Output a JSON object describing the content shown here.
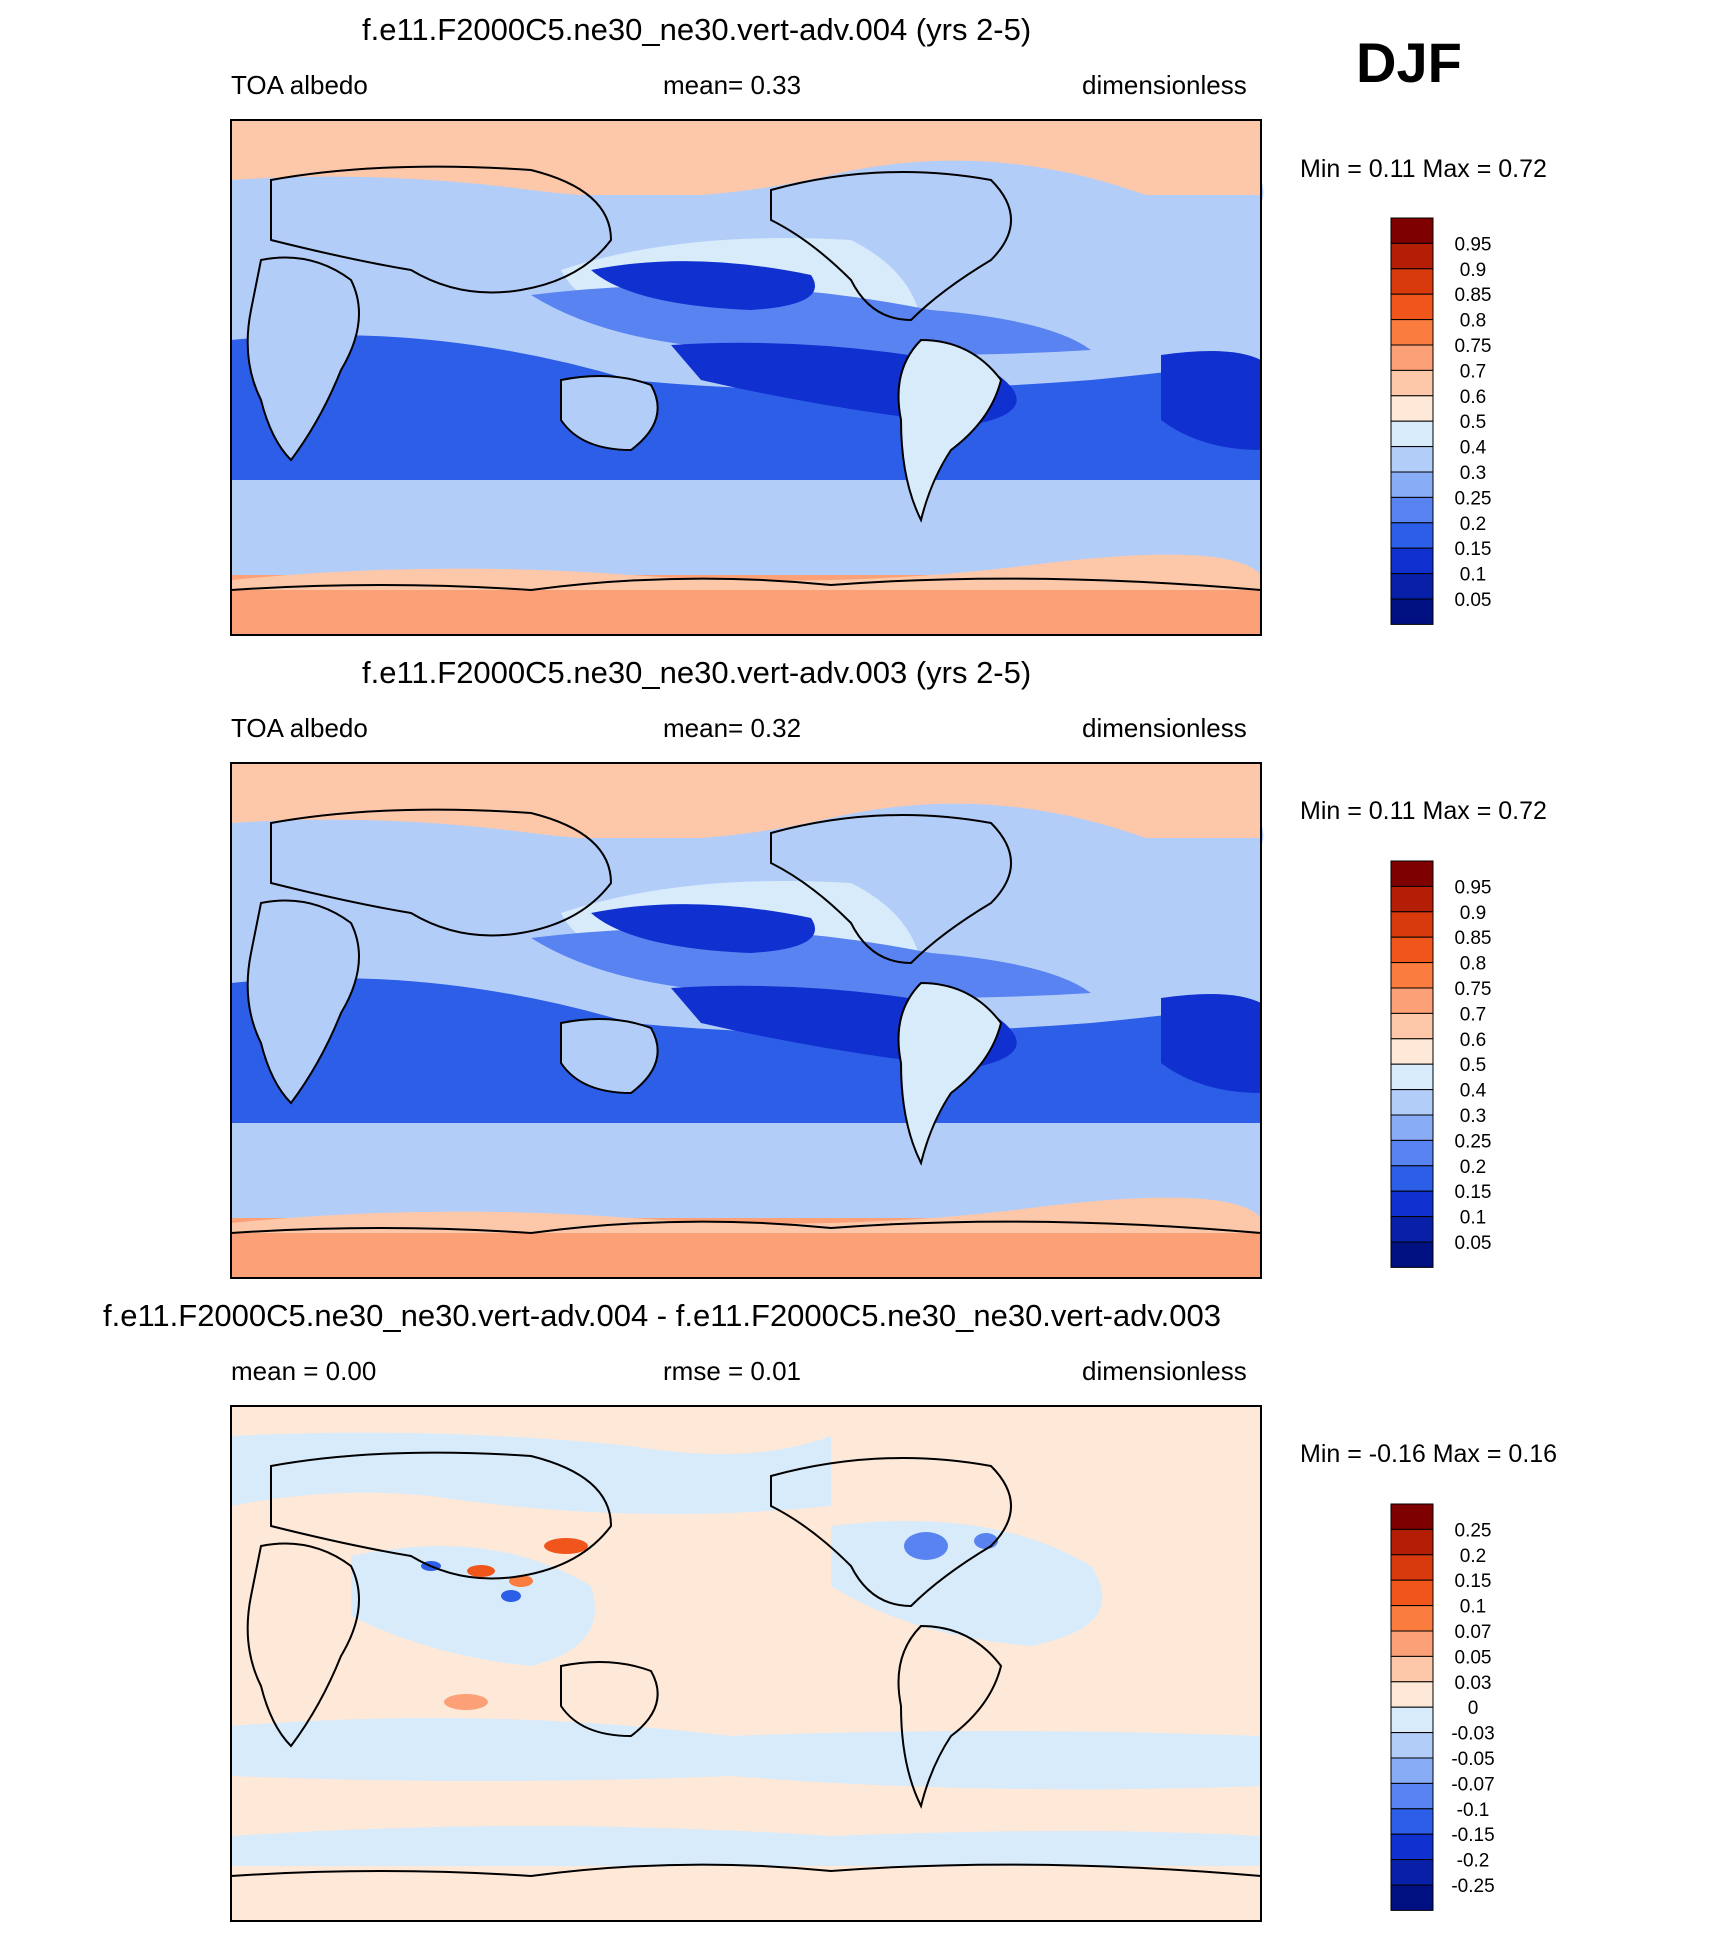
{
  "season": "DJF",
  "chart_data": [
    {
      "type": "heatmap",
      "title": "f.e11.F2000C5.ne30_ne30.vert-adv.004 (yrs 2-5)",
      "left_label": "TOA albedo",
      "center_label": "mean=   0.33",
      "right_label": "dimensionless",
      "range_label": "Min =   0.11 Max =   0.72",
      "mean": 0.33,
      "min": 0.11,
      "max": 0.72,
      "colorbar_levels": [
        "0.95",
        "0.9",
        "0.85",
        "0.8",
        "0.75",
        "0.7",
        "0.6",
        "0.5",
        "0.4",
        "0.3",
        "0.25",
        "0.2",
        "0.15",
        "0.1",
        "0.05"
      ],
      "colorbar_colors": [
        "#7f0000",
        "#b31e05",
        "#d83a0d",
        "#f0561c",
        "#fa7c3e",
        "#fca077",
        "#fdc8a9",
        "#fee8d8",
        "#d8ebfb",
        "#b3cdf9",
        "#88acf5",
        "#5883f0",
        "#2c5ee8",
        "#1030d0",
        "#0820a8",
        "#001080"
      ]
    },
    {
      "type": "heatmap",
      "title": "f.e11.F2000C5.ne30_ne30.vert-adv.003 (yrs 2-5)",
      "left_label": "TOA albedo",
      "center_label": "mean=   0.32",
      "right_label": "dimensionless",
      "range_label": "Min =   0.11 Max =   0.72",
      "mean": 0.32,
      "min": 0.11,
      "max": 0.72,
      "colorbar_levels": [
        "0.95",
        "0.9",
        "0.85",
        "0.8",
        "0.75",
        "0.7",
        "0.6",
        "0.5",
        "0.4",
        "0.3",
        "0.25",
        "0.2",
        "0.15",
        "0.1",
        "0.05"
      ],
      "colorbar_colors": [
        "#7f0000",
        "#b31e05",
        "#d83a0d",
        "#f0561c",
        "#fa7c3e",
        "#fca077",
        "#fdc8a9",
        "#fee8d8",
        "#d8ebfb",
        "#b3cdf9",
        "#88acf5",
        "#5883f0",
        "#2c5ee8",
        "#1030d0",
        "#0820a8",
        "#001080"
      ]
    },
    {
      "type": "heatmap",
      "title": "f.e11.F2000C5.ne30_ne30.vert-adv.004 - f.e11.F2000C5.ne30_ne30.vert-adv.003",
      "left_label": "mean =   0.00",
      "center_label": "rmse =   0.01",
      "right_label": "dimensionless",
      "range_label": "Min =  -0.16 Max =   0.16",
      "mean": 0.0,
      "rmse": 0.01,
      "min": -0.16,
      "max": 0.16,
      "colorbar_levels": [
        "0.25",
        "0.2",
        "0.15",
        "0.1",
        "0.07",
        "0.05",
        "0.03",
        "0",
        "-0.03",
        "-0.05",
        "-0.07",
        "-0.1",
        "-0.15",
        "-0.2",
        "-0.25"
      ],
      "colorbar_colors": [
        "#7f0000",
        "#b31e05",
        "#d83a0d",
        "#f0561c",
        "#fa7c3e",
        "#fca077",
        "#fdc8a9",
        "#fee8d8",
        "#d8ebfb",
        "#b3cdf9",
        "#88acf5",
        "#5883f0",
        "#2c5ee8",
        "#1030d0",
        "#0820a8",
        "#001080"
      ]
    }
  ]
}
